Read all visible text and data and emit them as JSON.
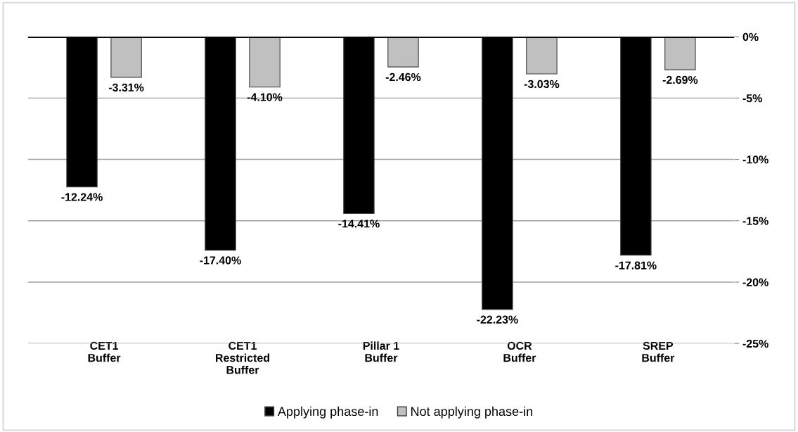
{
  "chart_data": {
    "type": "bar",
    "categories": [
      "CET1\nBuffer",
      "CET1\nRestricted\nBuffer",
      "Pillar 1\nBuffer",
      "OCR\nBuffer",
      "SREP\nBuffer"
    ],
    "series": [
      {
        "name": "Applying phase-in",
        "color": "#000000",
        "values": [
          -12.24,
          -17.4,
          -14.41,
          -22.23,
          -17.81
        ],
        "value_labels": [
          "-12.24%",
          "-17.40%",
          "-14.41%",
          "-22.23%",
          "-17.81%"
        ]
      },
      {
        "name": "Not applying phase-in",
        "color": "#c0c0c0",
        "values": [
          -3.31,
          -4.1,
          -2.46,
          -3.03,
          -2.69
        ],
        "value_labels": [
          "-3.31%",
          "-4.10%",
          "-2.46%",
          "-3.03%",
          "-2.69%"
        ]
      }
    ],
    "ylim": [
      -25,
      0
    ],
    "yticks": [
      {
        "value": 0,
        "label": "0%"
      },
      {
        "value": -5,
        "label": "-5%"
      },
      {
        "value": -10,
        "label": "-10%"
      },
      {
        "value": -15,
        "label": "-15%"
      },
      {
        "value": -20,
        "label": "-20%"
      },
      {
        "value": -25,
        "label": "-25%"
      }
    ],
    "grid": "y",
    "legend": "bottom"
  }
}
